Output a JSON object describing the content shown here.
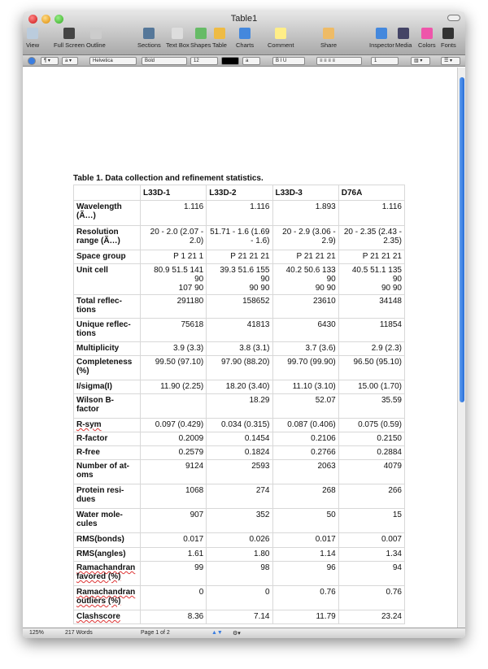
{
  "window": {
    "title": "Table1"
  },
  "toolbar": [
    "View",
    "Full Screen",
    "Outline",
    "Sections",
    "Text Box",
    "Shapes",
    "Table",
    "Charts",
    "Comment",
    "Share",
    "Inspector",
    "Media",
    "Colors",
    "Fonts"
  ],
  "format_bar": {
    "font": "Helvetica",
    "style": "Bold",
    "size": "12",
    "line_spacing": "1",
    "text_color": "#000000"
  },
  "document": {
    "caption": "Table 1.  Data collection and refinement statistics.",
    "columns": [
      "",
      "L33D-1",
      "L33D-2",
      "L33D-3",
      "D76A"
    ],
    "rows": [
      {
        "label": "Wavelength\n(Ã…)",
        "values": [
          "1.116",
          "1.116",
          "1.893",
          "1.116"
        ]
      },
      {
        "label": "Resolution\nrange (Ã…)",
        "values": [
          "20  - 2.0 (2.07 -\n2.0)",
          "51.71  - 1.6 (1.69\n- 1.6)",
          "20  - 2.9 (3.06 -\n2.9)",
          "20  - 2.35 (2.43 -\n2.35)"
        ]
      },
      {
        "label": "Space group",
        "values": [
          "P 1 21 1",
          "P 21 21 21",
          "P 21 21 21",
          "P 21 21 21"
        ]
      },
      {
        "label": "Unit cell",
        "values": [
          "80.9 51.5 141 90\n107 90",
          "39.3 51.6 155 90\n90 90",
          "40.2 50.6 133 90\n90 90",
          "40.5 51.1 135 90\n90 90"
        ]
      },
      {
        "label": "Total reflec-\ntions",
        "values": [
          "291180",
          "158652",
          "23610",
          "34148"
        ]
      },
      {
        "label": "Unique reflec-\ntions",
        "values": [
          "75618",
          "41813",
          "6430",
          "11854"
        ]
      },
      {
        "label": "Multiplicity",
        "values": [
          "3.9 (3.3)",
          "3.8 (3.1)",
          "3.7 (3.6)",
          "2.9 (2.3)"
        ]
      },
      {
        "label": "Completeness\n(%)",
        "values": [
          "99.50 (97.10)",
          "97.90 (88.20)",
          "99.70 (99.90)",
          "96.50 (95.10)"
        ]
      },
      {
        "label": "I/sigma(I)",
        "values": [
          "11.90 (2.25)",
          "18.20 (3.40)",
          "11.10 (3.10)",
          "15.00 (1.70)"
        ]
      },
      {
        "label": "Wilson B-\nfactor",
        "values": [
          "",
          "18.29",
          "52.07",
          "35.59"
        ]
      },
      {
        "label": "R-sym",
        "values": [
          "0.097 (0.429)",
          "0.034 (0.315)",
          "0.087 (0.406)",
          "0.075 (0.59)"
        ],
        "spell": true
      },
      {
        "label": "R-factor",
        "values": [
          "0.2009",
          "0.1454",
          "0.2106",
          "0.2150"
        ]
      },
      {
        "label": "R-free",
        "values": [
          "0.2579",
          "0.1824",
          "0.2766",
          "0.2884"
        ]
      },
      {
        "label": "Number of at-\noms",
        "values": [
          "9124",
          "2593",
          "2063",
          "4079"
        ]
      },
      {
        "label": "Protein resi-\ndues",
        "values": [
          "1068",
          "274",
          "268",
          "266"
        ]
      },
      {
        "label": "Water mole-\ncules",
        "values": [
          "907",
          "352",
          "50",
          "15"
        ]
      },
      {
        "label": "RMS(bonds)",
        "values": [
          "0.017",
          "0.026",
          "0.017",
          "0.007"
        ]
      },
      {
        "label": "RMS(angles)",
        "values": [
          "1.61",
          "1.80",
          "1.14",
          "1.34"
        ]
      },
      {
        "label": "Ramachandran\nfavored (%)",
        "values": [
          "99",
          "98",
          "96",
          "94"
        ],
        "spell": true
      },
      {
        "label": "Ramachandran\noutliers (%)",
        "values": [
          "0",
          "0",
          "0.76",
          "0.76"
        ],
        "spell": true
      },
      {
        "label": "Clashscore",
        "values": [
          "8.36",
          "7.14",
          "11.79",
          "23.24"
        ],
        "spell": true
      }
    ]
  },
  "status": {
    "zoom": "125%",
    "words": "217 Words",
    "page": "Page 1 of 2"
  }
}
